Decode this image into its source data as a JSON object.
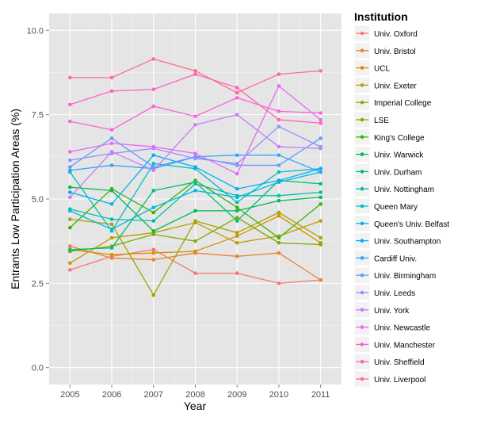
{
  "chart_data": {
    "type": "line",
    "xlabel": "Year",
    "ylabel": "Entrants Low Participation Areas (%)",
    "x": [
      2005,
      2006,
      2007,
      2008,
      2009,
      2010,
      2011
    ],
    "xlim": [
      2004.5,
      2011.5
    ],
    "ylim": [
      -0.5,
      10.5
    ],
    "yticks": [
      0.0,
      2.5,
      5.0,
      7.5,
      10.0
    ],
    "ytick_labels": [
      "0.0",
      "2.5",
      "5.0",
      "7.5",
      "10.0"
    ],
    "grid": true,
    "legend": {
      "title": "Institution",
      "position": "right"
    },
    "series": [
      {
        "name": "Univ. Oxford",
        "color": "#F8766D",
        "values": [
          2.9,
          3.3,
          3.5,
          2.8,
          2.8,
          2.5,
          2.6
        ]
      },
      {
        "name": "Univ. Bristol",
        "color": "#EA8331",
        "values": [
          3.6,
          3.25,
          3.2,
          3.4,
          3.3,
          3.4,
          2.6
        ]
      },
      {
        "name": "UCL",
        "color": "#D89000",
        "values": [
          3.5,
          3.35,
          3.4,
          3.45,
          3.9,
          4.5,
          3.7
        ]
      },
      {
        "name": "Univ. Exeter",
        "color": "#C09B00",
        "values": [
          3.1,
          3.85,
          4.0,
          4.3,
          3.7,
          3.9,
          4.35
        ]
      },
      {
        "name": "Imperial College",
        "color": "#A3A500",
        "values": [
          4.4,
          4.25,
          2.15,
          4.35,
          4.0,
          4.6,
          3.85
        ]
      },
      {
        "name": "LSE",
        "color": "#7CAE00",
        "values": [
          3.45,
          3.6,
          3.95,
          3.75,
          4.45,
          3.7,
          3.65
        ]
      },
      {
        "name": "King's College",
        "color": "#39B600",
        "values": [
          4.15,
          5.3,
          4.6,
          5.55,
          4.75,
          3.85,
          4.85
        ]
      },
      {
        "name": "Univ. Warwick",
        "color": "#00BB4E",
        "values": [
          5.35,
          5.25,
          4.05,
          4.65,
          4.65,
          4.95,
          5.05
        ]
      },
      {
        "name": "Univ. Durham",
        "color": "#00BF7D",
        "values": [
          3.5,
          3.55,
          5.25,
          5.5,
          4.35,
          5.55,
          5.45
        ]
      },
      {
        "name": "Univ. Nottingham",
        "color": "#00C1A3",
        "values": [
          4.7,
          4.4,
          4.35,
          5.45,
          5.1,
          5.1,
          5.2
        ]
      },
      {
        "name": "Queen Mary",
        "color": "#00BFC4",
        "values": [
          5.8,
          4.05,
          6.05,
          5.9,
          4.9,
          5.8,
          5.9
        ]
      },
      {
        "name": "Queen's Univ. Belfast",
        "color": "#00BAE0",
        "values": [
          4.65,
          4.1,
          4.75,
          5.25,
          5.05,
          5.5,
          5.8
        ]
      },
      {
        "name": "Univ. Southampton",
        "color": "#00B0F6",
        "values": [
          5.2,
          4.85,
          6.3,
          5.95,
          5.3,
          5.55,
          5.9
        ]
      },
      {
        "name": "Cardiff Univ.",
        "color": "#35A2FF",
        "values": [
          5.85,
          6.0,
          5.9,
          6.25,
          6.3,
          6.3,
          5.8
        ]
      },
      {
        "name": "Univ. Birmingham",
        "color": "#619CFF",
        "values": [
          5.95,
          6.8,
          5.95,
          6.25,
          6.0,
          6.0,
          6.8
        ]
      },
      {
        "name": "Univ. Leeds",
        "color": "#9590FF",
        "values": [
          6.15,
          6.35,
          6.5,
          6.2,
          6.05,
          7.15,
          6.55
        ]
      },
      {
        "name": "Univ. York",
        "color": "#C77CFF",
        "values": [
          5.05,
          6.4,
          5.85,
          7.2,
          7.5,
          6.55,
          6.5
        ]
      },
      {
        "name": "Univ. Newcastle",
        "color": "#E76BF3",
        "values": [
          6.4,
          6.65,
          6.55,
          6.35,
          5.75,
          8.35,
          7.35
        ]
      },
      {
        "name": "Univ. Manchester",
        "color": "#FA62DB",
        "values": [
          7.3,
          7.05,
          7.75,
          7.45,
          8.0,
          7.6,
          7.55
        ]
      },
      {
        "name": "Univ. Sheffield",
        "color": "#FF62BC",
        "values": [
          7.8,
          8.2,
          8.25,
          8.7,
          8.3,
          7.35,
          7.25
        ]
      },
      {
        "name": "Univ. Liverpool",
        "color": "#FF6C91",
        "values": [
          8.6,
          8.6,
          9.15,
          8.8,
          8.15,
          8.7,
          8.8
        ]
      }
    ]
  }
}
